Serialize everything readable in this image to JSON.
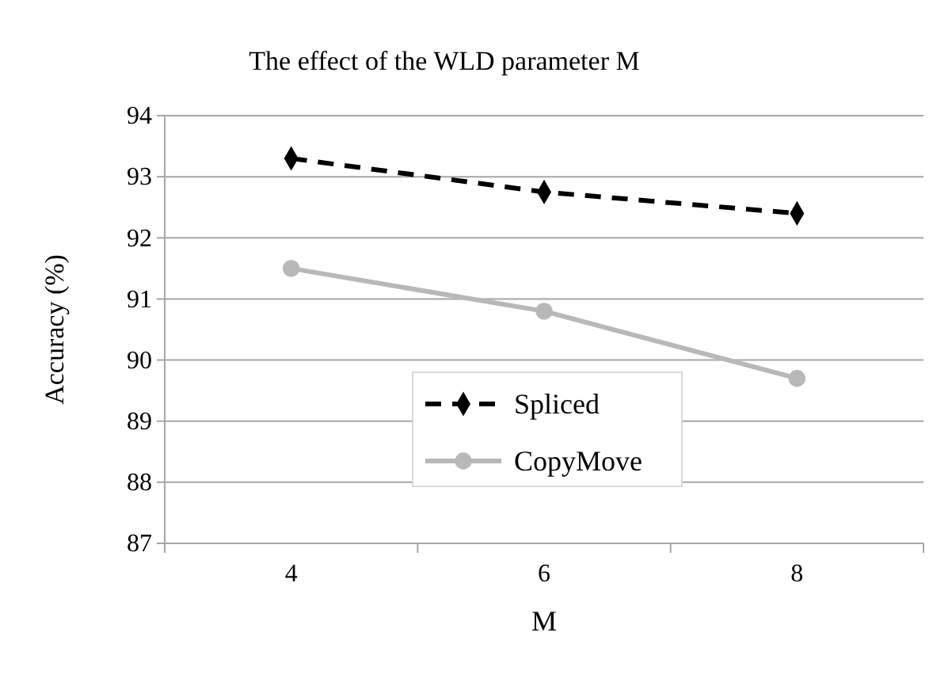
{
  "chart_data": {
    "type": "line",
    "title": "The effect of the WLD parameter M",
    "xlabel": "M",
    "ylabel": "Accuracy (%)",
    "categories": [
      "4",
      "6",
      "8"
    ],
    "series": [
      {
        "name": "Spliced",
        "color": "#000000",
        "values": [
          93.3,
          92.75,
          92.4
        ],
        "marker": "diamond",
        "line_style": "dashed"
      },
      {
        "name": "CopyMove",
        "color": "#b8b8b8",
        "values": [
          91.5,
          90.8,
          89.7
        ],
        "marker": "circle",
        "line_style": "solid"
      }
    ],
    "ylim": [
      87,
      94
    ],
    "yticks": [
      87,
      88,
      89,
      90,
      91,
      92,
      93,
      94
    ],
    "grid": "y",
    "legend": "bottom"
  }
}
